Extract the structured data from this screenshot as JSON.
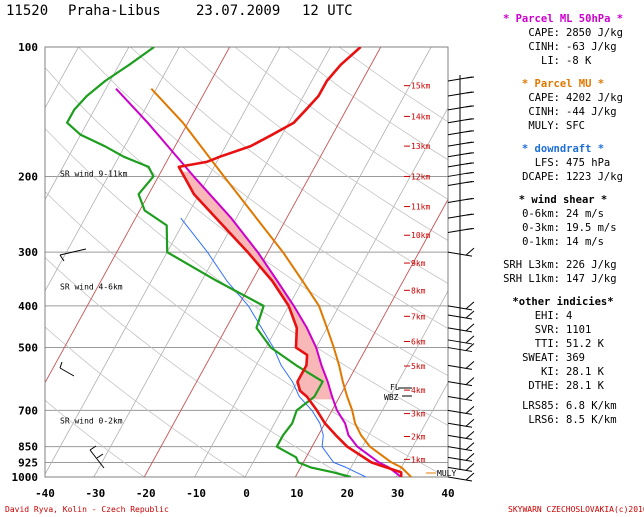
{
  "header": {
    "station": "11520",
    "location": "Praha-Libus",
    "date": "23.07.2009",
    "time": "12 UTC"
  },
  "footer": {
    "author": "David Ryva, Kolin - Czech Republic",
    "copyright": "SKYWARN CZECHOSLOVAKIA(c)2010"
  },
  "colors": {
    "temp": "#e81010",
    "dewpoint": "#1e9e1e",
    "parcel_ml": "#cc00cc",
    "parcel_mu": "#e07800",
    "wetbulb": "#3070ff",
    "cape": "#f8b8b8",
    "heights": "#cc0000"
  },
  "chart_data": {
    "type": "skew-t",
    "x_ticks": [
      -40,
      -30,
      -20,
      -10,
      0,
      10,
      20,
      30,
      40
    ],
    "p_ticks": [
      100,
      200,
      300,
      400,
      500,
      700,
      850,
      925,
      1000
    ],
    "temp_range": [
      -40,
      40
    ],
    "pressure_range": [
      100,
      1000
    ],
    "height_labels": [
      {
        "label": "1km",
        "p": 910
      },
      {
        "label": "2km",
        "p": 805
      },
      {
        "label": "3km",
        "p": 712
      },
      {
        "label": "4km",
        "p": 628
      },
      {
        "label": "5km",
        "p": 552
      },
      {
        "label": "6km",
        "p": 484
      },
      {
        "label": "7km",
        "p": 423
      },
      {
        "label": "8km",
        "p": 368
      },
      {
        "label": "9km",
        "p": 318
      },
      {
        "label": "10km",
        "p": 274
      },
      {
        "label": "11km",
        "p": 235
      },
      {
        "label": "12km",
        "p": 200
      },
      {
        "label": "13km",
        "p": 170
      },
      {
        "label": "14km",
        "p": 145
      },
      {
        "label": "15km",
        "p": 123
      }
    ],
    "annotations": [
      {
        "text": "SR wind 9-11km",
        "p": 235
      },
      {
        "text": "SR wind 4-6km",
        "p": 440
      },
      {
        "text": "SR wind 0-2km",
        "p": 720
      },
      {
        "text": "FL",
        "p": 640
      },
      {
        "text": "WBZ",
        "p": 660
      },
      {
        "text": "MULY",
        "p": 988
      }
    ],
    "series": [
      {
        "name": "temperature",
        "color": "#e81010",
        "points": [
          [
            1000,
            31
          ],
          [
            975,
            30.5
          ],
          [
            950,
            27
          ],
          [
            925,
            23.5
          ],
          [
            850,
            17
          ],
          [
            800,
            13.5
          ],
          [
            750,
            10
          ],
          [
            700,
            7
          ],
          [
            650,
            3.5
          ],
          [
            630,
            1.5
          ],
          [
            600,
            0
          ],
          [
            550,
            0
          ],
          [
            520,
            -1
          ],
          [
            500,
            -4
          ],
          [
            450,
            -6
          ],
          [
            400,
            -10
          ],
          [
            350,
            -16
          ],
          [
            300,
            -24
          ],
          [
            250,
            -34
          ],
          [
            220,
            -41
          ],
          [
            190,
            -47
          ],
          [
            185,
            -42
          ],
          [
            180,
            -40
          ],
          [
            170,
            -35
          ],
          [
            160,
            -32
          ],
          [
            150,
            -29
          ],
          [
            140,
            -28
          ],
          [
            130,
            -27
          ],
          [
            120,
            -27
          ],
          [
            110,
            -26
          ],
          [
            100,
            -24
          ]
        ]
      },
      {
        "name": "dewpoint",
        "color": "#1e9e1e",
        "points": [
          [
            1000,
            21
          ],
          [
            975,
            17
          ],
          [
            950,
            12
          ],
          [
            925,
            9
          ],
          [
            900,
            8
          ],
          [
            850,
            3
          ],
          [
            800,
            3
          ],
          [
            750,
            3.5
          ],
          [
            700,
            3
          ],
          [
            650,
            5
          ],
          [
            600,
            5
          ],
          [
            550,
            -2
          ],
          [
            500,
            -9
          ],
          [
            450,
            -14
          ],
          [
            400,
            -15
          ],
          [
            350,
            -27
          ],
          [
            300,
            -40
          ],
          [
            260,
            -43
          ],
          [
            240,
            -49
          ],
          [
            220,
            -52
          ],
          [
            200,
            -51
          ],
          [
            190,
            -53
          ],
          [
            180,
            -59
          ],
          [
            170,
            -64
          ],
          [
            160,
            -70
          ],
          [
            150,
            -74
          ],
          [
            140,
            -74
          ],
          [
            130,
            -73
          ],
          [
            120,
            -71
          ],
          [
            110,
            -68
          ],
          [
            100,
            -65
          ]
        ]
      },
      {
        "name": "wetbulb",
        "color": "#3070ff",
        "points": [
          [
            1000,
            24
          ],
          [
            950,
            19
          ],
          [
            925,
            16
          ],
          [
            850,
            12
          ],
          [
            800,
            11
          ],
          [
            750,
            9
          ],
          [
            700,
            6
          ],
          [
            650,
            2
          ],
          [
            600,
            -1
          ],
          [
            550,
            -5
          ],
          [
            500,
            -8.5
          ],
          [
            450,
            -13
          ],
          [
            400,
            -18
          ],
          [
            350,
            -25
          ],
          [
            300,
            -32
          ],
          [
            250,
            -41
          ]
        ]
      },
      {
        "name": "parcel_ml",
        "color": "#cc00cc",
        "points": [
          [
            1000,
            31
          ],
          [
            950,
            27.5
          ],
          [
            925,
            25
          ],
          [
            850,
            19
          ],
          [
            800,
            16
          ],
          [
            750,
            14
          ],
          [
            700,
            11
          ],
          [
            650,
            8.5
          ],
          [
            600,
            6
          ],
          [
            550,
            3
          ],
          [
            500,
            0
          ],
          [
            450,
            -4
          ],
          [
            400,
            -9
          ],
          [
            350,
            -15
          ],
          [
            300,
            -22
          ],
          [
            250,
            -31
          ],
          [
            200,
            -43
          ],
          [
            150,
            -58
          ],
          [
            125,
            -68
          ]
        ]
      },
      {
        "name": "parcel_mu",
        "color": "#e07800",
        "points": [
          [
            1000,
            33
          ],
          [
            950,
            30
          ],
          [
            925,
            27.5
          ],
          [
            850,
            21.5
          ],
          [
            800,
            18.5
          ],
          [
            750,
            16
          ],
          [
            700,
            14
          ],
          [
            650,
            11.5
          ],
          [
            600,
            9
          ],
          [
            550,
            6.5
          ],
          [
            500,
            3.5
          ],
          [
            450,
            0
          ],
          [
            400,
            -4
          ],
          [
            350,
            -10
          ],
          [
            300,
            -17
          ],
          [
            250,
            -26
          ],
          [
            200,
            -37
          ],
          [
            150,
            -51
          ],
          [
            125,
            -61
          ]
        ]
      }
    ]
  },
  "panel": {
    "ml": {
      "title": "* Parcel ML 50hPa *",
      "rows": [
        {
          "k": "CAPE:",
          "v": "2850 J/kg"
        },
        {
          "k": "CINH:",
          "v": "-63 J/kg"
        },
        {
          "k": "LI:",
          "v": "-8 K"
        }
      ]
    },
    "mu": {
      "title": "* Parcel MU *",
      "rows": [
        {
          "k": "CAPE:",
          "v": "4202 J/kg"
        },
        {
          "k": "CINH:",
          "v": "-44 J/kg"
        },
        {
          "k": "MULY:",
          "v": "SFC"
        }
      ]
    },
    "downdraft": {
      "title": "* downdraft *",
      "rows": [
        {
          "k": "LFS:",
          "v": "475 hPa"
        },
        {
          "k": "DCAPE:",
          "v": "1223 J/kg"
        }
      ]
    },
    "shear": {
      "title": "* wind shear *",
      "rows": [
        {
          "k": "0-6km:",
          "v": "24 m/s"
        },
        {
          "k": "0-3km:",
          "v": "19.5 m/s"
        },
        {
          "k": "0-1km:",
          "v": "14 m/s"
        }
      ]
    },
    "srh": {
      "rows": [
        {
          "k": "SRH L3km:",
          "v": "226 J/kg"
        },
        {
          "k": "SRH L1km:",
          "v": "147 J/kg"
        }
      ]
    },
    "other": {
      "title": "*other indicies*",
      "rows": [
        {
          "k": "EHI:",
          "v": "4"
        },
        {
          "k": "SVR:",
          "v": "1101"
        },
        {
          "k": "TTI:",
          "v": "51.2 K"
        },
        {
          "k": "SWEAT:",
          "v": "369"
        },
        {
          "k": "KI:",
          "v": "28.1 K"
        },
        {
          "k": "DTHE:",
          "v": "28.1 K"
        }
      ]
    },
    "lapse": {
      "rows": [
        {
          "k": "LRS85:",
          "v": "6.8 K/km"
        },
        {
          "k": "LRS6:",
          "v": "8.5 K/km"
        }
      ]
    }
  }
}
